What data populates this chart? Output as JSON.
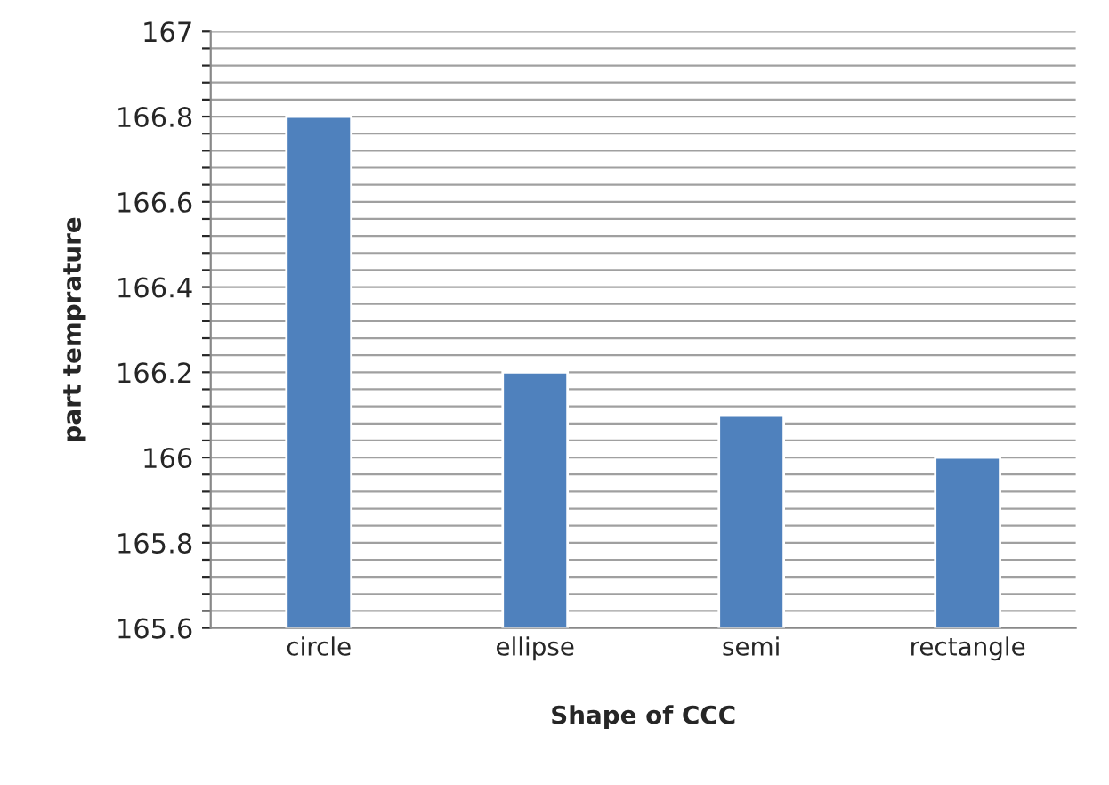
{
  "chart_data": {
    "type": "bar",
    "xlabel": "Shape of CCC",
    "ylabel": "part temprature",
    "categories": [
      "circle",
      "ellipse",
      "semi",
      "rectangle"
    ],
    "values": [
      166.8,
      166.2,
      166.1,
      166.0
    ],
    "color": "#4f81bd",
    "ylim": [
      165.6,
      167
    ],
    "yticks": [
      165.6,
      {
        "value": 165.64,
        "label": null
      },
      {
        "value": 165.68,
        "label": null
      },
      {
        "value": 165.72,
        "label": null
      },
      {
        "value": 165.76,
        "label": null
      },
      165.8,
      {
        "value": 165.84,
        "label": null
      },
      {
        "value": 165.88,
        "label": null
      },
      {
        "value": 165.92,
        "label": null
      },
      {
        "value": 165.96,
        "label": null
      },
      166,
      {
        "value": 166.04,
        "label": null
      },
      {
        "value": 166.08,
        "label": null
      },
      {
        "value": 166.12,
        "label": null
      },
      {
        "value": 166.16,
        "label": null
      },
      166.2,
      {
        "value": 166.24,
        "label": null
      },
      {
        "value": 166.28,
        "label": null
      },
      {
        "value": 166.32,
        "label": null
      },
      {
        "value": 166.36,
        "label": null
      },
      166.4,
      {
        "value": 166.44,
        "label": null
      },
      {
        "value": 166.48,
        "label": null
      },
      {
        "value": 166.52,
        "label": null
      },
      {
        "value": 166.56,
        "label": null
      },
      166.6,
      {
        "value": 166.64,
        "label": null
      },
      {
        "value": 166.68,
        "label": null
      },
      {
        "value": 166.72,
        "label": null
      },
      {
        "value": 166.76,
        "label": null
      },
      166.8,
      {
        "value": 166.84,
        "label": null
      },
      {
        "value": 166.88,
        "label": null
      },
      {
        "value": 166.92,
        "label": null
      },
      {
        "value": 166.96,
        "label": null
      },
      167
    ],
    "grid": "y",
    "legend": false
  }
}
